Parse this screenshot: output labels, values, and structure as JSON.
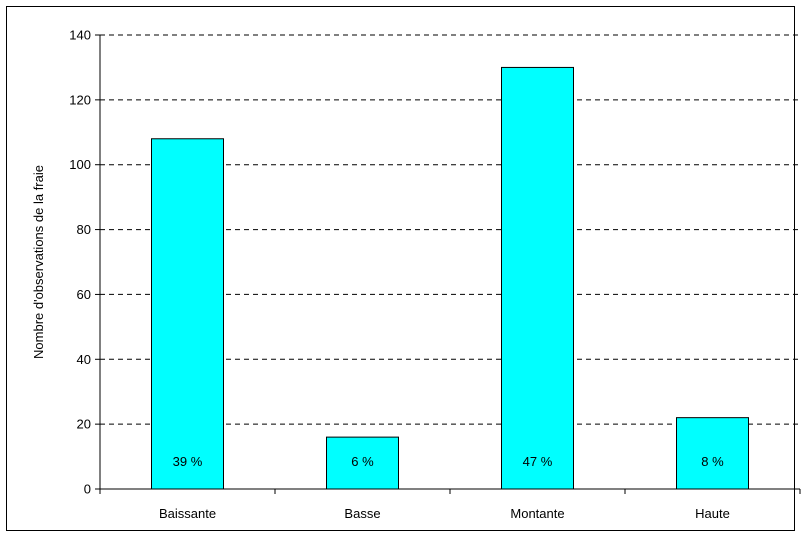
{
  "chart_data": {
    "type": "bar",
    "categories": [
      "Baissante",
      "Basse",
      "Montante",
      "Haute"
    ],
    "values": [
      108,
      16,
      130,
      22
    ],
    "data_labels": [
      "39 %",
      "6 %",
      "47 %",
      "8 %"
    ],
    "ylabel": "Nombre d'observations de la fraie",
    "xlabel": "",
    "ylim": [
      0,
      140
    ],
    "yticks": [
      0,
      20,
      40,
      60,
      80,
      100,
      120,
      140
    ],
    "grid": "horizontal-dashed",
    "legend": "none",
    "bar_color": "#00ffff",
    "bar_stroke": "#000000"
  }
}
